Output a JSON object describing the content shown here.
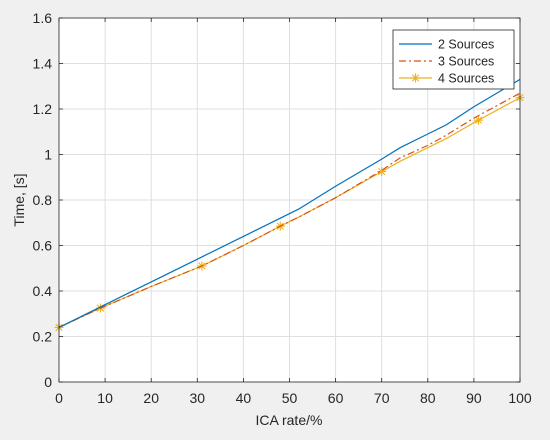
{
  "chart_data": {
    "type": "line",
    "title": "",
    "xlabel": "ICA rate/%",
    "ylabel": "Time, [s]",
    "xlim": [
      0,
      100
    ],
    "ylim": [
      0,
      1.6
    ],
    "xticks": [
      0,
      10,
      20,
      30,
      40,
      50,
      60,
      70,
      80,
      90,
      100
    ],
    "xtick_labels": [
      "0",
      "10",
      "20",
      "30",
      "40",
      "50",
      "60",
      "70",
      "80",
      "90",
      "100"
    ],
    "yticks": [
      0,
      0.2,
      0.4,
      0.6,
      0.8,
      1.0,
      1.2,
      1.4,
      1.6
    ],
    "ytick_labels": [
      "0",
      "0.2",
      "0.4",
      "0.6",
      "0.8",
      "1",
      "1.2",
      "1.4",
      "1.6"
    ],
    "grid": true,
    "legend_position": "top-right",
    "series": [
      {
        "name": "2 Sources",
        "color": "#0072bd",
        "line_style": "solid",
        "marker": "none",
        "x": [
          0,
          9,
          20,
          31,
          40,
          48,
          52,
          60,
          70,
          74,
          80,
          84,
          90,
          100
        ],
        "y": [
          0.24,
          0.33,
          0.44,
          0.55,
          0.64,
          0.72,
          0.76,
          0.86,
          0.98,
          1.03,
          1.09,
          1.13,
          1.21,
          1.33
        ]
      },
      {
        "name": "3 Sources",
        "color": "#d95319",
        "line_style": "dashdot",
        "marker": "none",
        "x": [
          0,
          9,
          20,
          31,
          40,
          48,
          52,
          60,
          70,
          74,
          80,
          84,
          90,
          100
        ],
        "y": [
          0.24,
          0.325,
          0.42,
          0.51,
          0.6,
          0.685,
          0.725,
          0.81,
          0.93,
          0.985,
          1.04,
          1.085,
          1.16,
          1.27
        ]
      },
      {
        "name": "4 Sources",
        "color": "#edb120",
        "line_style": "solid",
        "marker": "asterisk",
        "marker_x": [
          0,
          9,
          31,
          48,
          70,
          91,
          100
        ],
        "x": [
          0,
          9,
          20,
          31,
          40,
          48,
          52,
          60,
          70,
          74,
          80,
          84,
          90,
          100
        ],
        "y": [
          0.24,
          0.325,
          0.42,
          0.51,
          0.6,
          0.685,
          0.725,
          0.81,
          0.925,
          0.97,
          1.03,
          1.07,
          1.14,
          1.25
        ]
      }
    ]
  }
}
